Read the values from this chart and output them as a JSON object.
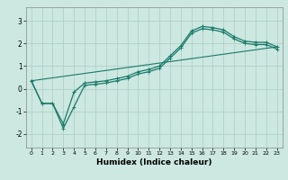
{
  "title": "",
  "xlabel": "Humidex (Indice chaleur)",
  "ylabel": "",
  "xlim": [
    -0.5,
    23.5
  ],
  "ylim": [
    -2.6,
    3.6
  ],
  "xticks": [
    0,
    1,
    2,
    3,
    4,
    5,
    6,
    7,
    8,
    9,
    10,
    11,
    12,
    13,
    14,
    15,
    16,
    17,
    18,
    19,
    20,
    21,
    22,
    23
  ],
  "yticks": [
    -2,
    -1,
    0,
    1,
    2,
    3
  ],
  "bg_color": "#cce8e0",
  "grid_color": "#aaccc4",
  "line_color": "#1a7a6a",
  "line1_x": [
    0,
    1,
    2,
    3,
    4,
    5,
    6,
    7,
    8,
    9,
    10,
    11,
    12,
    13,
    14,
    15,
    16,
    17,
    18,
    19,
    20,
    21,
    22,
    23
  ],
  "line1_y": [
    0.35,
    -0.65,
    -0.65,
    -1.55,
    -0.15,
    0.25,
    0.3,
    0.35,
    0.45,
    0.55,
    0.75,
    0.85,
    1.0,
    1.45,
    1.9,
    2.55,
    2.75,
    2.7,
    2.6,
    2.3,
    2.1,
    2.05,
    2.05,
    1.85
  ],
  "line2_x": [
    0,
    1,
    2,
    3,
    4,
    5,
    6,
    7,
    8,
    9,
    10,
    11,
    12,
    13,
    14,
    15,
    16,
    17,
    18,
    19,
    20,
    21,
    22,
    23
  ],
  "line2_y": [
    0.35,
    -0.65,
    -0.65,
    -1.75,
    -0.8,
    0.15,
    0.2,
    0.25,
    0.35,
    0.45,
    0.65,
    0.75,
    0.9,
    1.35,
    1.8,
    2.45,
    2.65,
    2.6,
    2.5,
    2.2,
    2.0,
    1.95,
    1.95,
    1.75
  ],
  "line3_x": [
    0,
    23
  ],
  "line3_y": [
    0.35,
    1.85
  ],
  "xtick_fontsize": 4.5,
  "ytick_fontsize": 5.5,
  "xlabel_fontsize": 6.5
}
